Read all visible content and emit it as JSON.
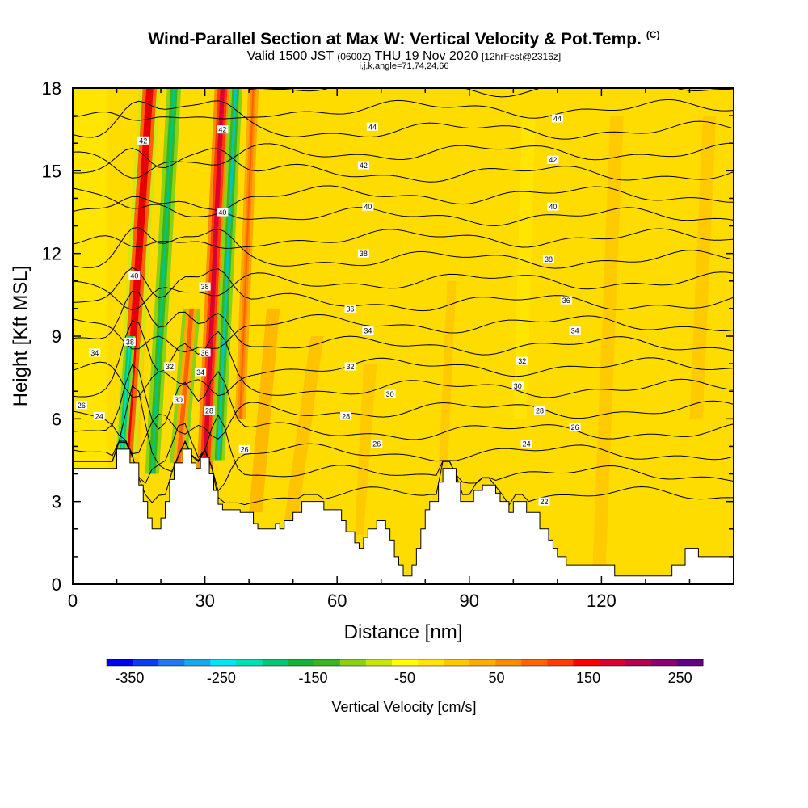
{
  "title": "Wind-Parallel Section at Max W: Vertical Velocity & Pot.Temp.",
  "title_mark": "(C)",
  "subtitle": {
    "valid": "Valid 1500 JST",
    "zulu": "(0600Z)",
    "date": "THU 19 Nov 2020",
    "fcst": "[12hrFcst@2316z]"
  },
  "subtitle2": "i,j,k,angle=71,74,24,66",
  "chart_data": {
    "type": "heatmap",
    "xlabel": "Distance [nm]",
    "ylabel": "Height [Kft MSL]",
    "xlim": [
      0,
      150
    ],
    "ylim": [
      0,
      18
    ],
    "xticks": [
      0,
      30,
      60,
      90,
      120
    ],
    "yticks": [
      0,
      3,
      6,
      9,
      12,
      15,
      18
    ],
    "colorbar": {
      "label": "Vertical Velocity [cm/s]",
      "ticks": [
        -350,
        -250,
        -150,
        -50,
        50,
        150,
        250
      ],
      "colors": [
        "#0000ee",
        "#0a3cf0",
        "#1e78f0",
        "#14aaf0",
        "#00e6f0",
        "#00e0b4",
        "#00c878",
        "#14b43c",
        "#3cb41e",
        "#8cd214",
        "#c8e60a",
        "#ffff00",
        "#ffe600",
        "#ffc800",
        "#ffaa00",
        "#ff8c00",
        "#ff6400",
        "#ff3c00",
        "#ff0000",
        "#dc0032",
        "#b40050",
        "#8c006e",
        "#640082"
      ]
    },
    "terrain_kft": [
      [
        0,
        4.2
      ],
      [
        10,
        4.2
      ],
      [
        10,
        4.9
      ],
      [
        13,
        4.9
      ],
      [
        13,
        4.4
      ],
      [
        15,
        4.4
      ],
      [
        15,
        3.6
      ],
      [
        16,
        3.6
      ],
      [
        16,
        3.0
      ],
      [
        17,
        3.0
      ],
      [
        17,
        2.4
      ],
      [
        18,
        2.4
      ],
      [
        18,
        2.0
      ],
      [
        20,
        2.0
      ],
      [
        20,
        2.4
      ],
      [
        21,
        2.4
      ],
      [
        21,
        3.0
      ],
      [
        22,
        3.0
      ],
      [
        22,
        3.8
      ],
      [
        23,
        3.8
      ],
      [
        23,
        4.4
      ],
      [
        25,
        4.4
      ],
      [
        25,
        4.9
      ],
      [
        27,
        4.9
      ],
      [
        27,
        4.4
      ],
      [
        28,
        4.4
      ],
      [
        28,
        4.2
      ],
      [
        29,
        4.2
      ],
      [
        29,
        4.6
      ],
      [
        31,
        4.6
      ],
      [
        31,
        4.0
      ],
      [
        32,
        4.0
      ],
      [
        32,
        3.4
      ],
      [
        33,
        3.4
      ],
      [
        33,
        2.9
      ],
      [
        34,
        2.9
      ],
      [
        34,
        2.7
      ],
      [
        38,
        2.7
      ],
      [
        38,
        2.6
      ],
      [
        41,
        2.6
      ],
      [
        41,
        2.2
      ],
      [
        42,
        2.2
      ],
      [
        42,
        2.0
      ],
      [
        46,
        2.0
      ],
      [
        46,
        2.2
      ],
      [
        47,
        2.2
      ],
      [
        47,
        2.0
      ],
      [
        48,
        2.0
      ],
      [
        48,
        2.3
      ],
      [
        50,
        2.3
      ],
      [
        50,
        2.6
      ],
      [
        52,
        2.6
      ],
      [
        52,
        3.0
      ],
      [
        57,
        3.0
      ],
      [
        57,
        2.7
      ],
      [
        61,
        2.7
      ],
      [
        61,
        2.3
      ],
      [
        62,
        2.3
      ],
      [
        62,
        1.9
      ],
      [
        64,
        1.9
      ],
      [
        64,
        1.5
      ],
      [
        65,
        1.5
      ],
      [
        65,
        1.3
      ],
      [
        66,
        1.3
      ],
      [
        66,
        1.7
      ],
      [
        67,
        1.7
      ],
      [
        67,
        2.0
      ],
      [
        69,
        2.0
      ],
      [
        69,
        2.3
      ],
      [
        71,
        2.3
      ],
      [
        71,
        2.0
      ],
      [
        72,
        2.0
      ],
      [
        72,
        1.6
      ],
      [
        73,
        1.6
      ],
      [
        73,
        1.0
      ],
      [
        74,
        1.0
      ],
      [
        74,
        0.7
      ],
      [
        75,
        0.7
      ],
      [
        75,
        0.3
      ],
      [
        77,
        0.3
      ],
      [
        77,
        0.7
      ],
      [
        78,
        0.7
      ],
      [
        78,
        1.3
      ],
      [
        79,
        1.3
      ],
      [
        79,
        2.0
      ],
      [
        80,
        2.0
      ],
      [
        80,
        2.7
      ],
      [
        81,
        2.7
      ],
      [
        81,
        3.0
      ],
      [
        83,
        3.0
      ],
      [
        83,
        3.7
      ],
      [
        84,
        3.7
      ],
      [
        84,
        4.2
      ],
      [
        87,
        4.2
      ],
      [
        87,
        3.7
      ],
      [
        88,
        3.7
      ],
      [
        88,
        3.0
      ],
      [
        91,
        3.0
      ],
      [
        91,
        3.4
      ],
      [
        93,
        3.4
      ],
      [
        93,
        3.6
      ],
      [
        96,
        3.6
      ],
      [
        96,
        3.3
      ],
      [
        97,
        3.3
      ],
      [
        97,
        3.0
      ],
      [
        99,
        3.0
      ],
      [
        99,
        2.6
      ],
      [
        100,
        2.6
      ],
      [
        100,
        3.0
      ],
      [
        103,
        3.0
      ],
      [
        103,
        2.6
      ],
      [
        106,
        2.6
      ],
      [
        106,
        2.0
      ],
      [
        108,
        2.0
      ],
      [
        108,
        1.6
      ],
      [
        109,
        1.6
      ],
      [
        109,
        1.3
      ],
      [
        110,
        1.3
      ],
      [
        110,
        1.0
      ],
      [
        112,
        1.0
      ],
      [
        112,
        0.7
      ],
      [
        123,
        0.7
      ],
      [
        123,
        0.3
      ],
      [
        136,
        0.3
      ],
      [
        136,
        0.7
      ],
      [
        139,
        0.7
      ],
      [
        139,
        1.3
      ],
      [
        142,
        1.3
      ],
      [
        142,
        1.0
      ],
      [
        150,
        1.0
      ]
    ],
    "contour_labels": [
      {
        "v": "44",
        "x": 68,
        "y": 16.6
      },
      {
        "v": "44",
        "x": 110,
        "y": 16.9
      },
      {
        "v": "42",
        "x": 66,
        "y": 15.2
      },
      {
        "v": "42",
        "x": 109,
        "y": 15.4
      },
      {
        "v": "40",
        "x": 67,
        "y": 13.7
      },
      {
        "v": "40",
        "x": 109,
        "y": 13.7
      },
      {
        "v": "38",
        "x": 66,
        "y": 12.0
      },
      {
        "v": "38",
        "x": 108,
        "y": 11.8
      },
      {
        "v": "36",
        "x": 63,
        "y": 10.0
      },
      {
        "v": "36",
        "x": 112,
        "y": 10.3
      },
      {
        "v": "34",
        "x": 67,
        "y": 9.2
      },
      {
        "v": "34",
        "x": 114,
        "y": 9.2
      },
      {
        "v": "32",
        "x": 63,
        "y": 7.9
      },
      {
        "v": "32",
        "x": 102,
        "y": 8.1
      },
      {
        "v": "30",
        "x": 72,
        "y": 6.9
      },
      {
        "v": "30",
        "x": 101,
        "y": 7.2
      },
      {
        "v": "28",
        "x": 62,
        "y": 6.1
      },
      {
        "v": "28",
        "x": 106,
        "y": 6.3
      },
      {
        "v": "26",
        "x": 69,
        "y": 5.1
      },
      {
        "v": "26",
        "x": 114,
        "y": 5.7
      },
      {
        "v": "24",
        "x": 103,
        "y": 5.1
      },
      {
        "v": "22",
        "x": 107,
        "y": 3.0
      },
      {
        "v": "34",
        "x": 5,
        "y": 8.4
      },
      {
        "v": "26",
        "x": 2,
        "y": 6.5
      },
      {
        "v": "24",
        "x": 6,
        "y": 6.1
      },
      {
        "v": "38",
        "x": 13,
        "y": 8.8
      },
      {
        "v": "40",
        "x": 14,
        "y": 11.2
      },
      {
        "v": "42",
        "x": 16,
        "y": 16.1
      },
      {
        "v": "32",
        "x": 22,
        "y": 7.9
      },
      {
        "v": "30",
        "x": 24,
        "y": 6.7
      },
      {
        "v": "28",
        "x": 31,
        "y": 6.3
      },
      {
        "v": "34",
        "x": 29,
        "y": 7.7
      },
      {
        "v": "36",
        "x": 30,
        "y": 8.4
      },
      {
        "v": "38",
        "x": 30,
        "y": 10.8
      },
      {
        "v": "42",
        "x": 34,
        "y": 16.5
      },
      {
        "v": "40",
        "x": 34,
        "y": 13.5
      },
      {
        "v": "26",
        "x": 39,
        "y": 4.9
      }
    ]
  }
}
